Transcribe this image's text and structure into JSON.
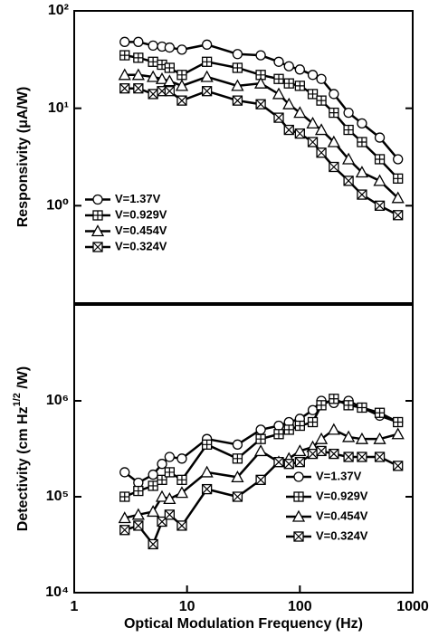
{
  "chart_data": [
    {
      "type": "line",
      "log_x": true,
      "log_y": true,
      "legend": "lower left",
      "ylabel": "Responsivity (μA/W)",
      "xlim": [
        1,
        1000
      ],
      "ylim": [
        0.1,
        100
      ],
      "yticks": [
        {
          "value": 100,
          "label": "10²"
        },
        {
          "value": 10,
          "label": "10¹"
        },
        {
          "value": 1,
          "label": "10⁰"
        }
      ],
      "x": [
        2.8,
        3.7,
        5,
        6,
        7,
        9,
        15,
        28,
        45,
        65,
        80,
        100,
        130,
        155,
        200,
        270,
        355,
        510,
        740
      ],
      "series": [
        {
          "name": "V=1.37V",
          "color": "#000000",
          "marker": "circle",
          "values": [
            48,
            48,
            44,
            43,
            42,
            40,
            45,
            36,
            35,
            30,
            27,
            25,
            22,
            20,
            14,
            9,
            7,
            5,
            3
          ]
        },
        {
          "name": "V=0.929V",
          "color": "#000000",
          "marker": "square-plus",
          "values": [
            35,
            33,
            30,
            28,
            26,
            22,
            30,
            26,
            22,
            20,
            18,
            17,
            14,
            12,
            9,
            6,
            4.5,
            3,
            1.9
          ]
        },
        {
          "name": "V=0.454V",
          "color": "#000000",
          "marker": "triangle",
          "values": [
            22,
            22,
            21,
            20,
            19,
            17,
            21,
            17,
            18,
            14,
            11,
            9,
            7,
            6,
            4.5,
            3,
            2.2,
            1.8,
            1.2
          ]
        },
        {
          "name": "V=0.324V",
          "color": "#000000",
          "marker": "square-x",
          "values": [
            16,
            16,
            14,
            15,
            15,
            12,
            15,
            12,
            11,
            8,
            6,
            5.5,
            4.5,
            3.5,
            2.5,
            1.8,
            1.3,
            1.0,
            0.8
          ]
        }
      ]
    },
    {
      "type": "line",
      "log_x": true,
      "log_y": true,
      "legend": "lower right",
      "ylabel": "Detectivity (cm Hz",
      "ylabel_sup": "1/2",
      "ylabel_end": " /W)",
      "xlabel": "Optical Modulation Frequency (Hz)",
      "xlim": [
        1,
        1000
      ],
      "ylim": [
        10000,
        10000000
      ],
      "xticks": [
        1,
        10,
        100,
        1000
      ],
      "yticks": [
        {
          "value": 1000000,
          "label": "10⁶"
        },
        {
          "value": 100000,
          "label": "10⁵"
        },
        {
          "value": 10000,
          "label": "10⁴"
        }
      ],
      "x": [
        2.8,
        3.7,
        5,
        6,
        7,
        9,
        15,
        28,
        45,
        65,
        80,
        100,
        130,
        155,
        200,
        270,
        355,
        510,
        740
      ],
      "series": [
        {
          "name": "V=1.37V",
          "color": "#000000",
          "marker": "circle",
          "values": [
            180000,
            140000,
            170000,
            220000,
            260000,
            250000,
            400000,
            350000,
            500000,
            550000,
            600000,
            650000,
            800000,
            1000000,
            950000,
            1000000,
            850000,
            700000,
            600000
          ]
        },
        {
          "name": "V=0.929V",
          "color": "#000000",
          "marker": "square-plus",
          "values": [
            100000,
            115000,
            130000,
            150000,
            180000,
            150000,
            350000,
            250000,
            400000,
            450000,
            500000,
            550000,
            600000,
            900000,
            1050000,
            900000,
            850000,
            750000,
            600000
          ]
        },
        {
          "name": "V=0.454V",
          "color": "#000000",
          "marker": "triangle",
          "values": [
            60000,
            65000,
            70000,
            100000,
            95000,
            110000,
            180000,
            160000,
            300000,
            230000,
            250000,
            300000,
            330000,
            400000,
            500000,
            420000,
            400000,
            400000,
            450000
          ]
        },
        {
          "name": "V=0.324V",
          "color": "#000000",
          "marker": "square-x",
          "values": [
            45000,
            50000,
            32000,
            55000,
            65000,
            50000,
            120000,
            100000,
            150000,
            230000,
            220000,
            230000,
            280000,
            300000,
            280000,
            260000,
            260000,
            260000,
            210000
          ]
        }
      ]
    }
  ]
}
